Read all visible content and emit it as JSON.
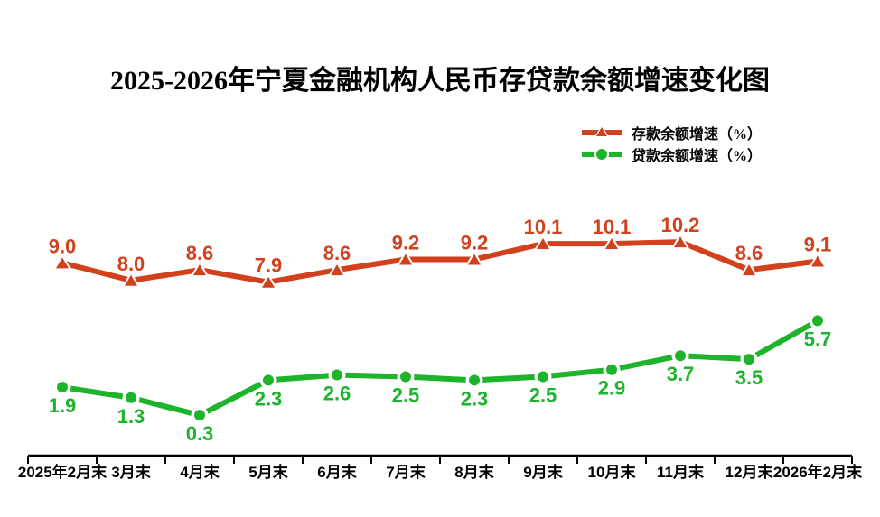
{
  "chart_data": {
    "type": "line",
    "title": "2025-2026年宁夏金融机构人民币存贷款余额增速变化图",
    "xlabel": "",
    "ylabel": "",
    "categories": [
      "2025年2月末",
      "3月末",
      "4月末",
      "5月末",
      "6月末",
      "7月末",
      "8月末",
      "9月末",
      "10月末",
      "11月末",
      "12月末",
      "2026年2月末"
    ],
    "series": [
      {
        "name": "存款余额增速（%）",
        "color": "#d2411e",
        "marker": "triangle",
        "label_position": "above",
        "values": [
          9.0,
          8.0,
          8.6,
          7.9,
          8.6,
          9.2,
          9.2,
          10.1,
          10.1,
          10.2,
          8.6,
          9.1
        ]
      },
      {
        "name": "贷款余额增速（%）",
        "color": "#1db32a",
        "marker": "circle",
        "label_position": "below",
        "values": [
          1.9,
          1.3,
          0.3,
          2.3,
          2.6,
          2.5,
          2.3,
          2.5,
          2.9,
          3.7,
          3.5,
          5.7
        ]
      }
    ],
    "legend_position": "top-right",
    "grid": false,
    "y_axis_visible": false,
    "axis_color": "#000000",
    "background_color": "#ffffff"
  }
}
